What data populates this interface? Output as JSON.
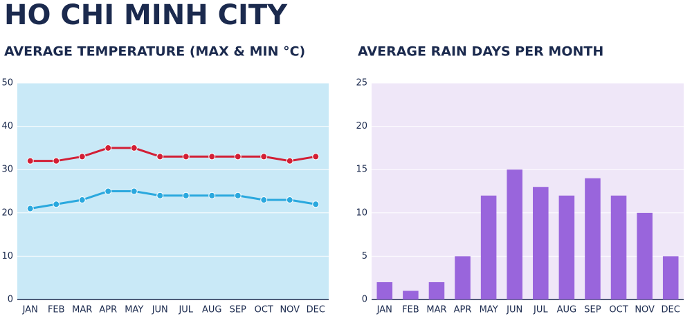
{
  "page_title": "HO CHI MINH CITY",
  "chart_data": [
    {
      "type": "line",
      "title": "AVERAGE TEMPERATURE (MAX & MIN °C)",
      "categories": [
        "JAN",
        "FEB",
        "MAR",
        "APR",
        "MAY",
        "JUN",
        "JUL",
        "AUG",
        "SEP",
        "OCT",
        "NOV",
        "DEC"
      ],
      "series": [
        {
          "color": "#d21f35",
          "values": [
            32,
            32,
            33,
            35,
            35,
            33,
            33,
            33,
            33,
            33,
            32,
            33
          ]
        },
        {
          "color": "#2aa8de",
          "values": [
            21,
            22,
            23,
            25,
            25,
            24,
            24,
            24,
            24,
            23,
            23,
            22
          ]
        }
      ],
      "ylim": [
        0,
        50
      ],
      "yticks": [
        0,
        10,
        20,
        30,
        40,
        50
      ],
      "grid": true,
      "background": "#c9e9f7"
    },
    {
      "type": "bar",
      "title": "AVERAGE RAIN DAYS PER MONTH",
      "categories": [
        "JAN",
        "FEB",
        "MAR",
        "APR",
        "MAY",
        "JUN",
        "JUL",
        "AUG",
        "SEP",
        "OCT",
        "NOV",
        "DEC"
      ],
      "values": [
        2,
        1,
        2,
        5,
        12,
        15,
        13,
        12,
        14,
        12,
        10,
        5
      ],
      "color": "#9965dc",
      "ylim": [
        0,
        25
      ],
      "yticks": [
        0,
        5,
        10,
        15,
        20,
        25
      ],
      "grid": true,
      "background": "#efe7f8"
    }
  ]
}
